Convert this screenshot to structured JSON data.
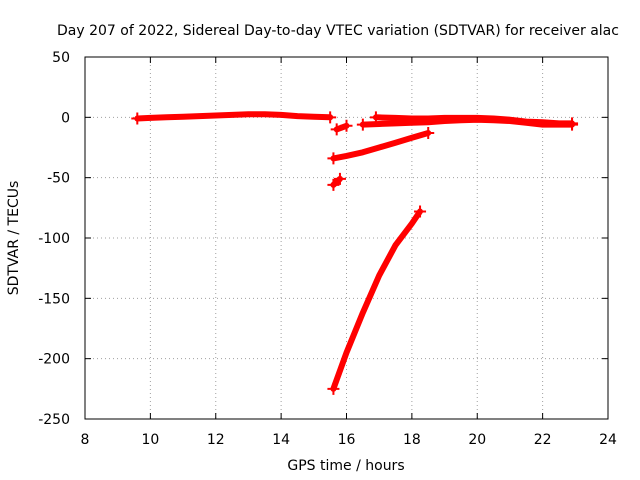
{
  "chart_data": {
    "type": "scatter",
    "title": "Day 207 of 2022, Sidereal Day-to-day VTEC variation (SDTVAR) for receiver alac",
    "xlabel": "GPS time / hours",
    "ylabel": "SDTVAR / TECUs",
    "xlim": [
      8,
      24
    ],
    "ylim": [
      -250,
      50
    ],
    "x_ticks": [
      8,
      10,
      12,
      14,
      16,
      18,
      20,
      22,
      24
    ],
    "y_ticks": [
      50,
      0,
      -50,
      -100,
      -150,
      -200,
      -250
    ],
    "grid": true,
    "marker": "plus",
    "color": "#ff0000",
    "series": [
      {
        "x": [
          9.6,
          10,
          10.5,
          11,
          11.5,
          12,
          12.5,
          13,
          13.5,
          14,
          14.5,
          15,
          15.5
        ],
        "y": [
          -1,
          -0.5,
          0,
          0.5,
          1,
          1.5,
          2,
          2.5,
          2.5,
          2,
          1,
          0.5,
          0
        ]
      },
      {
        "x": [
          15.7,
          16.0
        ],
        "y": [
          -10,
          -7
        ]
      },
      {
        "x": [
          15.6,
          15.8
        ],
        "y": [
          -56,
          -51
        ]
      },
      {
        "x": [
          15.6,
          16,
          16.5,
          17,
          17.5,
          18,
          18.5
        ],
        "y": [
          -34,
          -32,
          -29,
          -25,
          -21,
          -17,
          -13
        ]
      },
      {
        "x": [
          15.6,
          16,
          16.5,
          17,
          17.5,
          18,
          18.25
        ],
        "y": [
          -225,
          -195,
          -162,
          -131,
          -106,
          -88,
          -78
        ]
      },
      {
        "x": [
          16.5,
          17,
          17.5,
          18,
          18.5,
          19,
          19.5,
          20,
          20.5,
          21,
          21.5,
          22,
          22.5,
          22.9
        ],
        "y": [
          -6,
          -5.5,
          -5,
          -4.5,
          -4,
          -3,
          -2.5,
          -2,
          -2.5,
          -3,
          -4.5,
          -6,
          -6,
          -6
        ]
      },
      {
        "x": [
          16.9,
          17.5,
          18,
          18.5,
          19,
          19.5,
          20,
          20.5,
          21,
          21.5,
          22,
          22.5,
          22.9
        ],
        "y": [
          0,
          -0.5,
          -1,
          -1,
          -0.5,
          -0.5,
          -0.5,
          -1,
          -2,
          -3.5,
          -4,
          -5,
          -5
        ]
      }
    ]
  }
}
